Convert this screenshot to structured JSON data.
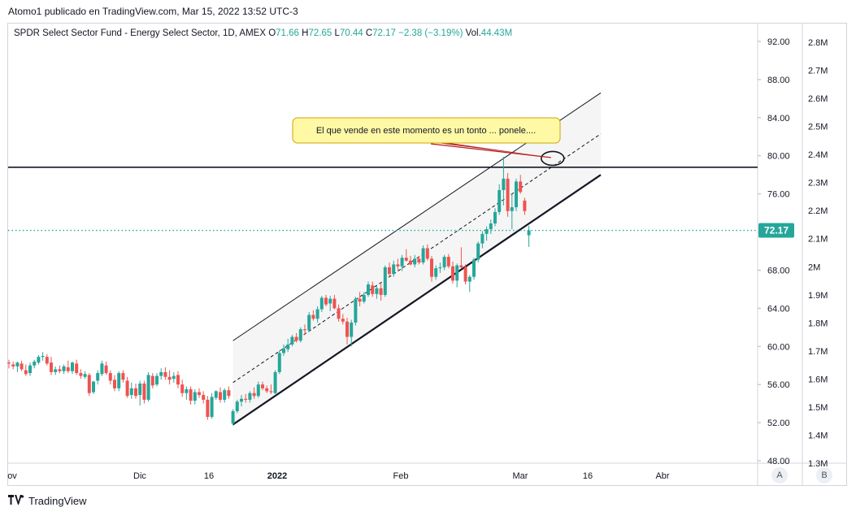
{
  "caption": "Atomo1 publicado en TradingView.com, Mar 15, 2022 13:52 UTC-3",
  "legend": {
    "symbol": "SPDR Select Sector Fund - Energy Select Sector, 1D, AMEX",
    "o_label": "O",
    "o": "71.66",
    "h_label": "H",
    "h": "72.65",
    "l_label": "L",
    "l": "70.44",
    "c_label": "C",
    "c": "72.17",
    "change": "−2.38 (−3.19%)",
    "vol_label": "Vol.",
    "vol": "44.43M"
  },
  "annotation": "El que vende en este momento es un tonto ...  ponele....",
  "footer": {
    "brand": "TradingView"
  },
  "scale_buttons": {
    "a": "A",
    "b": "B"
  },
  "colors": {
    "up": "#26a69a",
    "down": "#ef5350",
    "last_price_line": "#26a69a",
    "callout_bg": "#fff9a6",
    "callout_border": "#d5a200",
    "arrow": "#b71c1c"
  },
  "chart_data": {
    "type": "candlestick",
    "title": "SPDR Select Sector Fund - Energy Select Sector, 1D, AMEX",
    "ylim": [
      48,
      94
    ],
    "price_ticks": [
      "92.00",
      "88.00",
      "84.00",
      "80.00",
      "76.00",
      "72.00",
      "68.00",
      "64.00",
      "60.00",
      "56.00",
      "52.00",
      "48.00"
    ],
    "last_price": "72.17",
    "volume_ticks": [
      "2.8M",
      "2.7M",
      "2.6M",
      "2.5M",
      "2.4M",
      "2.3M",
      "2.2M",
      "2.1M",
      "2M",
      "1.9M",
      "1.8M",
      "1.7M",
      "1.6M",
      "1.5M",
      "1.4M",
      "1.3M"
    ],
    "x_ticks": [
      "ov",
      "Dic",
      "16",
      "2022",
      "Feb",
      "Mar",
      "16",
      "Abr"
    ],
    "horizontal_level": 78.8,
    "channel": {
      "start_index": 53,
      "end_index": 140,
      "lower_start": 51.8,
      "lower_end": 78.0,
      "upper_start": 60.6,
      "upper_end": 86.6
    },
    "candles": [
      {
        "o": 58.3,
        "h": 58.6,
        "l": 57.7,
        "c": 58.2
      },
      {
        "o": 58.1,
        "h": 58.4,
        "l": 57.6,
        "c": 57.9
      },
      {
        "o": 57.9,
        "h": 58.4,
        "l": 57.3,
        "c": 58.3
      },
      {
        "o": 58.2,
        "h": 58.5,
        "l": 57.4,
        "c": 57.6
      },
      {
        "o": 57.5,
        "h": 58.1,
        "l": 56.9,
        "c": 57.1
      },
      {
        "o": 57.2,
        "h": 58.3,
        "l": 56.9,
        "c": 58.0
      },
      {
        "o": 58.0,
        "h": 58.6,
        "l": 57.7,
        "c": 58.4
      },
      {
        "o": 58.3,
        "h": 59.1,
        "l": 58.1,
        "c": 58.9
      },
      {
        "o": 58.9,
        "h": 59.4,
        "l": 58.5,
        "c": 59.0
      },
      {
        "o": 58.9,
        "h": 59.2,
        "l": 58.0,
        "c": 58.2
      },
      {
        "o": 58.3,
        "h": 58.9,
        "l": 57.0,
        "c": 57.3
      },
      {
        "o": 57.3,
        "h": 57.9,
        "l": 57.0,
        "c": 57.6
      },
      {
        "o": 57.6,
        "h": 58.0,
        "l": 57.2,
        "c": 57.4
      },
      {
        "o": 57.4,
        "h": 58.1,
        "l": 57.1,
        "c": 57.9
      },
      {
        "o": 57.8,
        "h": 58.5,
        "l": 57.2,
        "c": 57.4
      },
      {
        "o": 57.4,
        "h": 58.4,
        "l": 57.1,
        "c": 58.3
      },
      {
        "o": 58.2,
        "h": 58.6,
        "l": 57.0,
        "c": 57.2
      },
      {
        "o": 57.2,
        "h": 57.6,
        "l": 56.6,
        "c": 56.9
      },
      {
        "o": 56.8,
        "h": 57.4,
        "l": 56.6,
        "c": 57.1
      },
      {
        "o": 57.0,
        "h": 57.2,
        "l": 54.8,
        "c": 55.1
      },
      {
        "o": 55.2,
        "h": 56.4,
        "l": 55.0,
        "c": 56.3
      },
      {
        "o": 56.4,
        "h": 57.5,
        "l": 56.0,
        "c": 57.2
      },
      {
        "o": 57.1,
        "h": 58.5,
        "l": 56.9,
        "c": 58.2
      },
      {
        "o": 58.0,
        "h": 58.4,
        "l": 57.0,
        "c": 57.2
      },
      {
        "o": 57.2,
        "h": 57.5,
        "l": 56.0,
        "c": 56.4
      },
      {
        "o": 56.5,
        "h": 57.0,
        "l": 55.3,
        "c": 55.6
      },
      {
        "o": 55.6,
        "h": 57.4,
        "l": 55.3,
        "c": 57.2
      },
      {
        "o": 57.2,
        "h": 57.5,
        "l": 56.2,
        "c": 56.5
      },
      {
        "o": 56.4,
        "h": 56.8,
        "l": 54.6,
        "c": 54.8
      },
      {
        "o": 54.9,
        "h": 56.2,
        "l": 54.5,
        "c": 55.6
      },
      {
        "o": 55.6,
        "h": 56.1,
        "l": 54.5,
        "c": 54.8
      },
      {
        "o": 54.9,
        "h": 56.4,
        "l": 53.8,
        "c": 56.1
      },
      {
        "o": 56.1,
        "h": 56.4,
        "l": 54.0,
        "c": 54.4
      },
      {
        "o": 54.4,
        "h": 57.3,
        "l": 54.2,
        "c": 57.0
      },
      {
        "o": 56.9,
        "h": 57.2,
        "l": 55.6,
        "c": 55.9
      },
      {
        "o": 56.0,
        "h": 57.2,
        "l": 55.8,
        "c": 56.9
      },
      {
        "o": 56.9,
        "h": 57.7,
        "l": 56.5,
        "c": 57.3
      },
      {
        "o": 57.3,
        "h": 57.8,
        "l": 56.5,
        "c": 56.8
      },
      {
        "o": 56.8,
        "h": 57.5,
        "l": 56.0,
        "c": 56.5
      },
      {
        "o": 56.6,
        "h": 57.3,
        "l": 56.2,
        "c": 56.9
      },
      {
        "o": 57.0,
        "h": 57.4,
        "l": 55.6,
        "c": 56.0
      },
      {
        "o": 56.0,
        "h": 56.5,
        "l": 54.7,
        "c": 55.1
      },
      {
        "o": 55.1,
        "h": 55.8,
        "l": 54.4,
        "c": 55.5
      },
      {
        "o": 55.5,
        "h": 55.8,
        "l": 53.9,
        "c": 54.3
      },
      {
        "o": 54.3,
        "h": 55.5,
        "l": 53.9,
        "c": 55.2
      },
      {
        "o": 55.2,
        "h": 55.6,
        "l": 54.6,
        "c": 54.9
      },
      {
        "o": 54.9,
        "h": 55.3,
        "l": 54.0,
        "c": 54.4
      },
      {
        "o": 54.4,
        "h": 54.8,
        "l": 52.3,
        "c": 52.6
      },
      {
        "o": 52.6,
        "h": 55.1,
        "l": 52.4,
        "c": 54.7
      },
      {
        "o": 54.6,
        "h": 55.4,
        "l": 54.4,
        "c": 55.3
      },
      {
        "o": 55.2,
        "h": 55.7,
        "l": 54.1,
        "c": 54.4
      },
      {
        "o": 54.4,
        "h": 55.6,
        "l": 54.1,
        "c": 55.4
      },
      {
        "o": 55.4,
        "h": 55.8,
        "l": 54.5,
        "c": 54.8
      },
      {
        "o": 51.9,
        "h": 53.4,
        "l": 51.7,
        "c": 53.2
      },
      {
        "o": 53.2,
        "h": 54.4,
        "l": 53.0,
        "c": 54.2
      },
      {
        "o": 54.2,
        "h": 54.9,
        "l": 53.7,
        "c": 54.5
      },
      {
        "o": 54.5,
        "h": 55.0,
        "l": 54.1,
        "c": 54.4
      },
      {
        "o": 54.4,
        "h": 55.3,
        "l": 54.1,
        "c": 55.1
      },
      {
        "o": 55.1,
        "h": 55.7,
        "l": 54.5,
        "c": 54.8
      },
      {
        "o": 54.8,
        "h": 56.3,
        "l": 54.6,
        "c": 56.0
      },
      {
        "o": 56.0,
        "h": 56.3,
        "l": 55.4,
        "c": 55.6
      },
      {
        "o": 55.6,
        "h": 55.9,
        "l": 55.1,
        "c": 55.3
      },
      {
        "o": 55.3,
        "h": 56.0,
        "l": 55.0,
        "c": 55.2
      },
      {
        "o": 55.1,
        "h": 57.5,
        "l": 55.0,
        "c": 57.3
      },
      {
        "o": 57.3,
        "h": 59.6,
        "l": 57.1,
        "c": 59.3
      },
      {
        "o": 59.3,
        "h": 60.2,
        "l": 59.0,
        "c": 59.8
      },
      {
        "o": 59.7,
        "h": 60.8,
        "l": 59.4,
        "c": 60.2
      },
      {
        "o": 60.2,
        "h": 61.2,
        "l": 60.0,
        "c": 61.0
      },
      {
        "o": 61.0,
        "h": 61.4,
        "l": 60.4,
        "c": 60.6
      },
      {
        "o": 60.6,
        "h": 62.0,
        "l": 60.4,
        "c": 61.8
      },
      {
        "o": 61.8,
        "h": 62.3,
        "l": 61.2,
        "c": 61.7
      },
      {
        "o": 61.7,
        "h": 63.6,
        "l": 61.5,
        "c": 63.3
      },
      {
        "o": 63.3,
        "h": 63.8,
        "l": 62.7,
        "c": 62.9
      },
      {
        "o": 62.9,
        "h": 64.2,
        "l": 62.5,
        "c": 63.9
      },
      {
        "o": 63.9,
        "h": 65.3,
        "l": 63.6,
        "c": 65.1
      },
      {
        "o": 65.1,
        "h": 65.4,
        "l": 64.2,
        "c": 64.4
      },
      {
        "o": 64.5,
        "h": 65.3,
        "l": 63.7,
        "c": 65.0
      },
      {
        "o": 65.0,
        "h": 65.4,
        "l": 63.9,
        "c": 64.0
      },
      {
        "o": 64.0,
        "h": 64.4,
        "l": 62.6,
        "c": 62.9
      },
      {
        "o": 62.9,
        "h": 63.4,
        "l": 62.3,
        "c": 62.6
      },
      {
        "o": 62.6,
        "h": 63.0,
        "l": 60.2,
        "c": 61.0
      },
      {
        "o": 61.0,
        "h": 62.8,
        "l": 60.0,
        "c": 62.5
      },
      {
        "o": 62.5,
        "h": 65.2,
        "l": 62.2,
        "c": 65.0
      },
      {
        "o": 65.0,
        "h": 65.7,
        "l": 64.2,
        "c": 64.7
      },
      {
        "o": 64.7,
        "h": 65.7,
        "l": 64.5,
        "c": 65.4
      },
      {
        "o": 65.4,
        "h": 66.8,
        "l": 65.2,
        "c": 66.5
      },
      {
        "o": 66.4,
        "h": 66.8,
        "l": 65.2,
        "c": 65.5
      },
      {
        "o": 65.5,
        "h": 66.4,
        "l": 65.0,
        "c": 66.1
      },
      {
        "o": 66.1,
        "h": 66.7,
        "l": 64.8,
        "c": 65.4
      },
      {
        "o": 65.4,
        "h": 68.5,
        "l": 65.2,
        "c": 68.3
      },
      {
        "o": 68.3,
        "h": 68.8,
        "l": 67.3,
        "c": 67.6
      },
      {
        "o": 67.6,
        "h": 69.0,
        "l": 67.3,
        "c": 68.6
      },
      {
        "o": 68.6,
        "h": 69.2,
        "l": 68.0,
        "c": 68.4
      },
      {
        "o": 68.4,
        "h": 69.6,
        "l": 67.9,
        "c": 69.3
      },
      {
        "o": 69.3,
        "h": 70.2,
        "l": 68.9,
        "c": 69.0
      },
      {
        "o": 69.0,
        "h": 69.5,
        "l": 68.5,
        "c": 68.6
      },
      {
        "o": 68.6,
        "h": 69.6,
        "l": 68.3,
        "c": 69.2
      },
      {
        "o": 69.2,
        "h": 69.5,
        "l": 68.6,
        "c": 68.8
      },
      {
        "o": 68.8,
        "h": 70.6,
        "l": 68.6,
        "c": 70.3
      },
      {
        "o": 70.3,
        "h": 70.7,
        "l": 69.0,
        "c": 69.2
      },
      {
        "o": 69.2,
        "h": 69.5,
        "l": 66.8,
        "c": 67.3
      },
      {
        "o": 67.3,
        "h": 68.5,
        "l": 67.0,
        "c": 68.2
      },
      {
        "o": 68.2,
        "h": 68.8,
        "l": 67.7,
        "c": 68.3
      },
      {
        "o": 68.3,
        "h": 69.6,
        "l": 68.0,
        "c": 69.4
      },
      {
        "o": 69.4,
        "h": 69.7,
        "l": 68.2,
        "c": 68.4
      },
      {
        "o": 68.4,
        "h": 68.9,
        "l": 66.6,
        "c": 66.9
      },
      {
        "o": 66.9,
        "h": 68.7,
        "l": 66.2,
        "c": 68.5
      },
      {
        "o": 68.5,
        "h": 70.4,
        "l": 68.2,
        "c": 68.3
      },
      {
        "o": 68.3,
        "h": 68.6,
        "l": 66.5,
        "c": 66.8
      },
      {
        "o": 66.8,
        "h": 67.5,
        "l": 65.7,
        "c": 67.3
      },
      {
        "o": 67.3,
        "h": 69.3,
        "l": 67.0,
        "c": 69.1
      },
      {
        "o": 69.1,
        "h": 71.0,
        "l": 68.8,
        "c": 70.8
      },
      {
        "o": 70.8,
        "h": 72.1,
        "l": 70.3,
        "c": 71.8
      },
      {
        "o": 71.8,
        "h": 72.6,
        "l": 71.1,
        "c": 72.3
      },
      {
        "o": 72.3,
        "h": 73.3,
        "l": 71.8,
        "c": 72.9
      },
      {
        "o": 72.9,
        "h": 74.5,
        "l": 72.6,
        "c": 74.1
      },
      {
        "o": 74.1,
        "h": 77.0,
        "l": 73.8,
        "c": 76.4
      },
      {
        "o": 76.4,
        "h": 79.9,
        "l": 74.8,
        "c": 77.6
      },
      {
        "o": 77.6,
        "h": 78.2,
        "l": 73.6,
        "c": 74.2
      },
      {
        "o": 74.2,
        "h": 76.0,
        "l": 72.3,
        "c": 74.6
      },
      {
        "o": 74.6,
        "h": 77.6,
        "l": 74.2,
        "c": 77.3
      },
      {
        "o": 77.3,
        "h": 78.0,
        "l": 76.0,
        "c": 76.2
      },
      {
        "o": 75.3,
        "h": 75.6,
        "l": 73.8,
        "c": 74.2
      },
      {
        "o": 71.66,
        "h": 72.65,
        "l": 70.44,
        "c": 72.17
      }
    ]
  }
}
